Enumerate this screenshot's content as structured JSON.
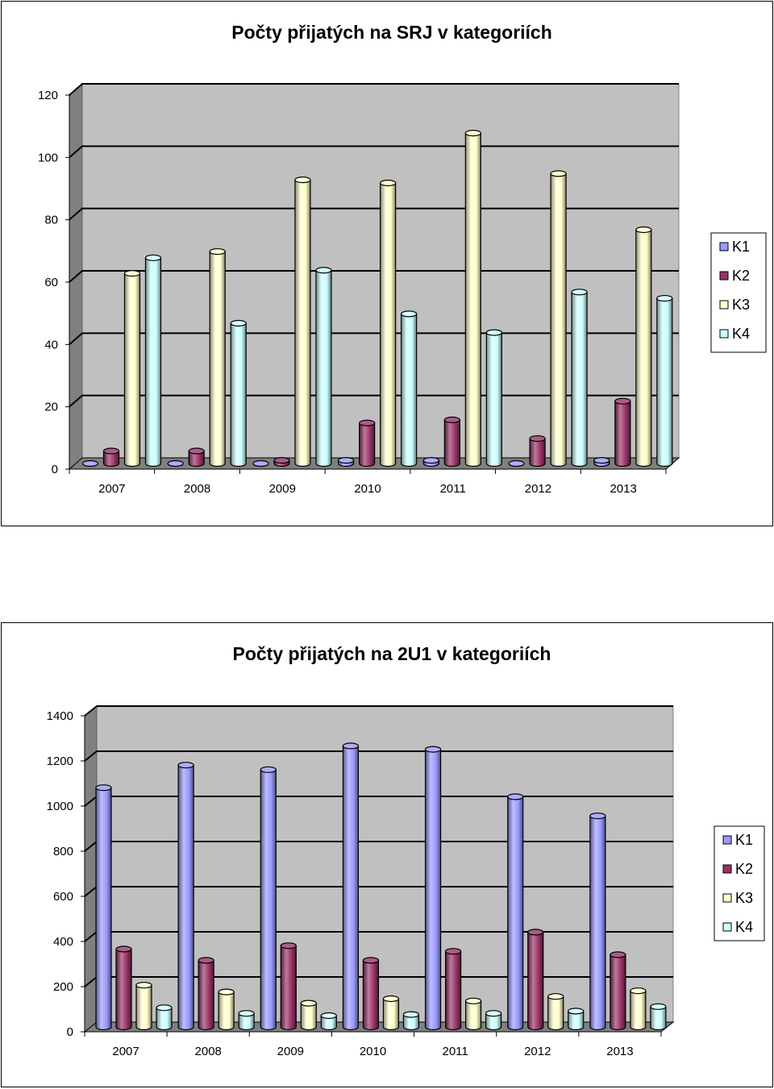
{
  "chart_data": [
    {
      "type": "bar",
      "title": "Počty přijatých na SRJ v kategoriích",
      "xlabel": "",
      "ylabel": "",
      "categories": [
        "2007",
        "2008",
        "2009",
        "2010",
        "2011",
        "2012",
        "2013"
      ],
      "series": [
        {
          "name": "K1",
          "color": "#9999ff",
          "values": [
            0,
            0,
            0,
            1,
            1,
            0,
            1
          ]
        },
        {
          "name": "K2",
          "color": "#993366",
          "values": [
            4,
            4,
            1,
            13,
            14,
            8,
            20
          ]
        },
        {
          "name": "K3",
          "color": "#ffffcc",
          "values": [
            61,
            68,
            91,
            90,
            106,
            93,
            75
          ]
        },
        {
          "name": "K4",
          "color": "#ccffff",
          "values": [
            66,
            45,
            62,
            48,
            42,
            55,
            53
          ]
        }
      ],
      "ylim": [
        0,
        120
      ],
      "yticks": [
        "0",
        "20",
        "40",
        "60",
        "80",
        "100",
        "120"
      ],
      "grid": true,
      "legend": "right"
    },
    {
      "type": "bar",
      "title": "Počty přijatých na 2U1 v kategoriích",
      "xlabel": "",
      "ylabel": "",
      "categories": [
        "2007",
        "2008",
        "2009",
        "2010",
        "2011",
        "2012",
        "2013"
      ],
      "series": [
        {
          "name": "K1",
          "color": "#9999ff",
          "values": [
            1060,
            1160,
            1140,
            1245,
            1230,
            1020,
            935
          ]
        },
        {
          "name": "K2",
          "color": "#993366",
          "values": [
            345,
            295,
            360,
            295,
            335,
            420,
            320
          ]
        },
        {
          "name": "K3",
          "color": "#ffffcc",
          "values": [
            185,
            155,
            105,
            125,
            115,
            135,
            160
          ]
        },
        {
          "name": "K4",
          "color": "#ccffff",
          "values": [
            85,
            60,
            50,
            55,
            60,
            70,
            90
          ]
        }
      ],
      "ylim": [
        0,
        1400
      ],
      "yticks": [
        "0",
        "200",
        "400",
        "600",
        "800",
        "1000",
        "1200",
        "1400"
      ],
      "grid": true,
      "legend": "right"
    }
  ]
}
